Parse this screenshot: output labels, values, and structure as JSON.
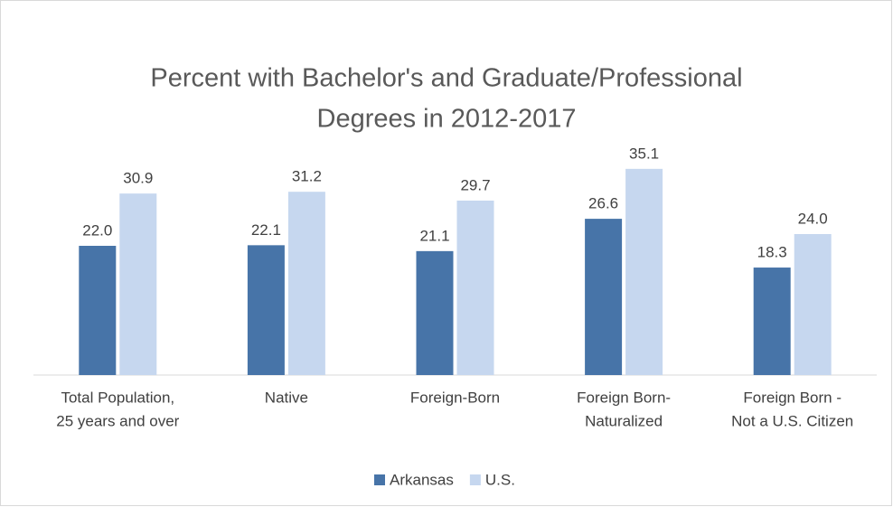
{
  "chart_data": {
    "type": "bar",
    "title": [
      "Percent with Bachelor's and Graduate/Professional",
      "Degrees in 2012-2017"
    ],
    "categories": [
      [
        "Total Population,",
        "25 years and over"
      ],
      [
        "Native"
      ],
      [
        "Foreign-Born"
      ],
      [
        "Foreign Born-",
        "Naturalized"
      ],
      [
        "Foreign Born -",
        "Not a U.S. Citizen"
      ]
    ],
    "series": [
      {
        "name": "Arkansas",
        "color": "#4774a8",
        "values": [
          22.0,
          22.1,
          21.1,
          26.6,
          18.3
        ],
        "value_labels": [
          "22.0",
          "22.1",
          "21.1",
          "26.6",
          "18.3"
        ]
      },
      {
        "name": "U.S.",
        "color": "#c6d7ef",
        "values": [
          30.9,
          31.2,
          29.7,
          35.1,
          24.0
        ],
        "value_labels": [
          "30.9",
          "31.2",
          "29.7",
          "35.1",
          "24.0"
        ]
      }
    ],
    "ylim": [
      0,
      40
    ]
  }
}
